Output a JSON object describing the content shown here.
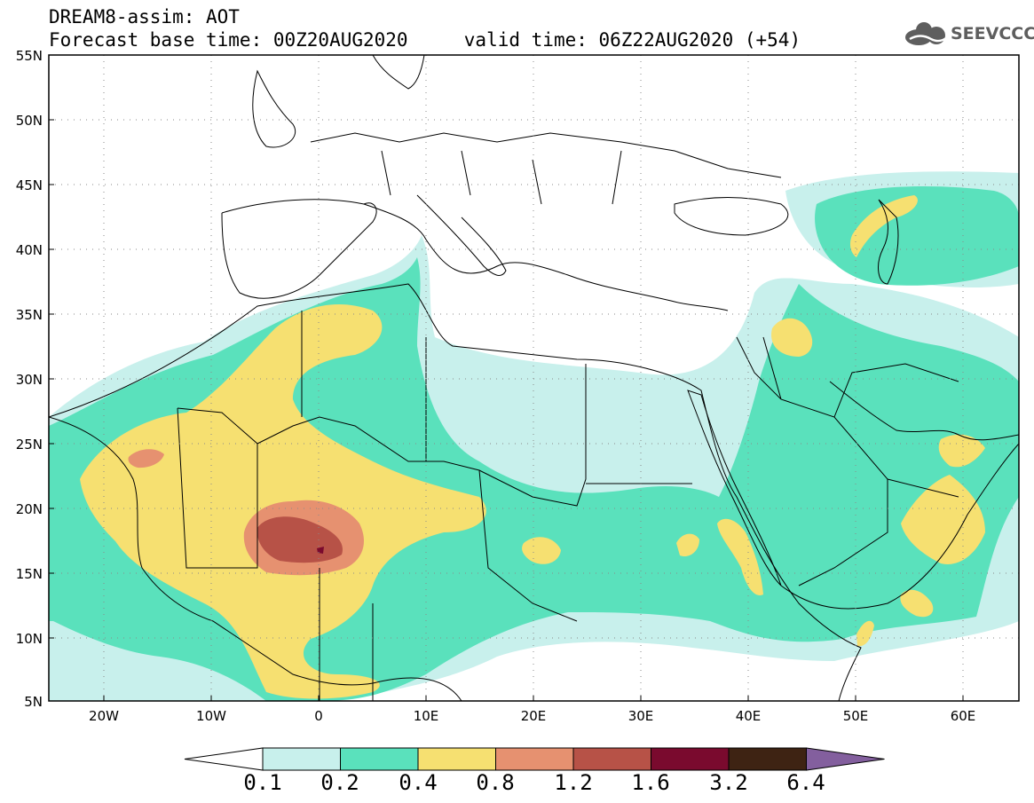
{
  "header": {
    "title_line1": "DREAM8-assim: AOT",
    "title_line2": "Forecast base time: 00Z20AUG2020     valid time: 06Z22AUG2020 (+54)"
  },
  "logo": {
    "text": "SEEVCCC",
    "icon": "cloud-icon",
    "color": "#5e5e5e"
  },
  "map": {
    "variable": "AOT",
    "lon_range": [
      -25,
      65
    ],
    "lat_range": [
      5,
      55
    ],
    "grid": "dotted",
    "lat_labels": [
      "55N",
      "50N",
      "45N",
      "40N",
      "35N",
      "30N",
      "25N",
      "20N",
      "15N",
      "10N",
      "5N"
    ],
    "lon_labels": [
      "20W",
      "10W",
      "0",
      "10E",
      "20E",
      "30E",
      "40E",
      "50E",
      "60E"
    ]
  },
  "colorbar": {
    "levels": [
      "0.1",
      "0.2",
      "0.4",
      "0.8",
      "1.2",
      "1.6",
      "3.2",
      "6.4"
    ],
    "colors": [
      "#c8f0ec",
      "#5ae1bc",
      "#f6e071",
      "#e69170",
      "#b75247",
      "#7a0a2e",
      "#3e2313",
      "#835f9e"
    ]
  }
}
